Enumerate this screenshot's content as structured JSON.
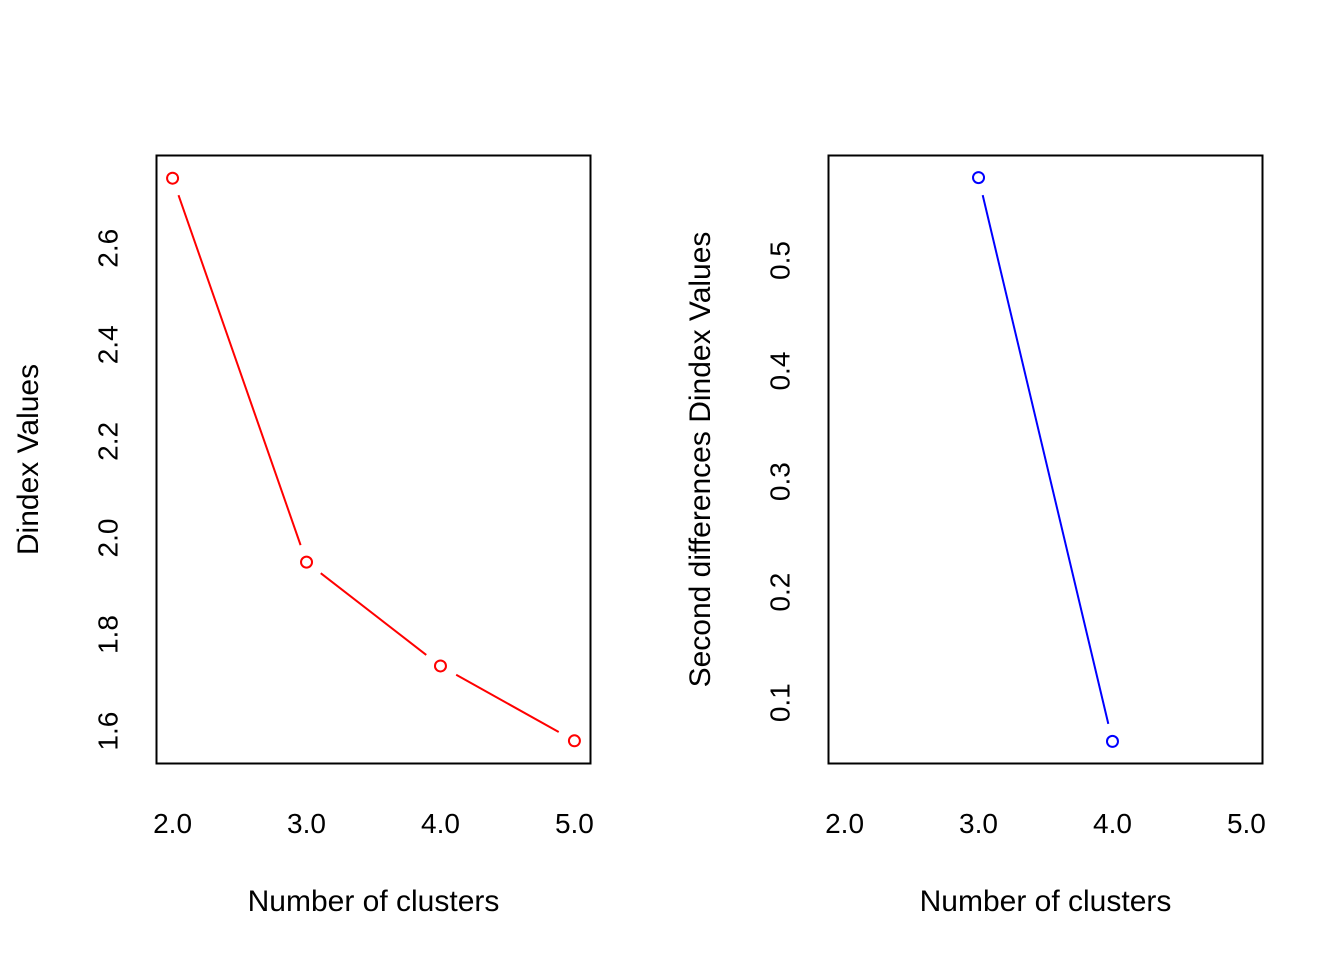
{
  "figure": {
    "background_color": "#FFFFFF",
    "description": "Two R base-graphics line plots side by side (NbClust Dindex diagnostic plots)"
  },
  "chart_data": [
    {
      "type": "line",
      "panel": "left",
      "title": "",
      "xlabel": "Number of clusters",
      "ylabel": "Dindex Values",
      "series_name": "Dindex",
      "color": "#FF0000",
      "marker": "open-circle",
      "x": [
        2,
        3,
        4,
        5
      ],
      "y": [
        2.745,
        1.95,
        1.735,
        1.58
      ],
      "xlim": [
        1.88,
        5.12
      ],
      "ylim": [
        1.533,
        2.792
      ],
      "xtick_values": [
        2,
        3,
        4,
        5
      ],
      "xtick_labels": [
        "2.0",
        "3.0",
        "4.0",
        "5.0"
      ],
      "ytick_values": [
        1.6,
        1.8,
        2.0,
        2.2,
        2.4,
        2.6
      ],
      "ytick_labels": [
        "1.6",
        "1.8",
        "2.0",
        "2.2",
        "2.4",
        "2.6"
      ],
      "grid": false,
      "legend": "none"
    },
    {
      "type": "line",
      "panel": "right",
      "title": "",
      "xlabel": "Number of clusters",
      "ylabel": "Second differences Dindex Values",
      "series_name": "Second differences Dindex",
      "color": "#0000FF",
      "marker": "open-circle",
      "x": [
        3,
        4
      ],
      "y": [
        0.575,
        0.065
      ],
      "xlim": [
        1.88,
        5.12
      ],
      "ylim": [
        0.045,
        0.595
      ],
      "xtick_values": [
        2,
        3,
        4,
        5
      ],
      "xtick_labels": [
        "2.0",
        "3.0",
        "4.0",
        "5.0"
      ],
      "ytick_values": [
        0.1,
        0.2,
        0.3,
        0.4,
        0.5
      ],
      "ytick_labels": [
        "0.1",
        "0.2",
        "0.3",
        "0.4",
        "0.5"
      ],
      "grid": false,
      "legend": "none"
    }
  ]
}
